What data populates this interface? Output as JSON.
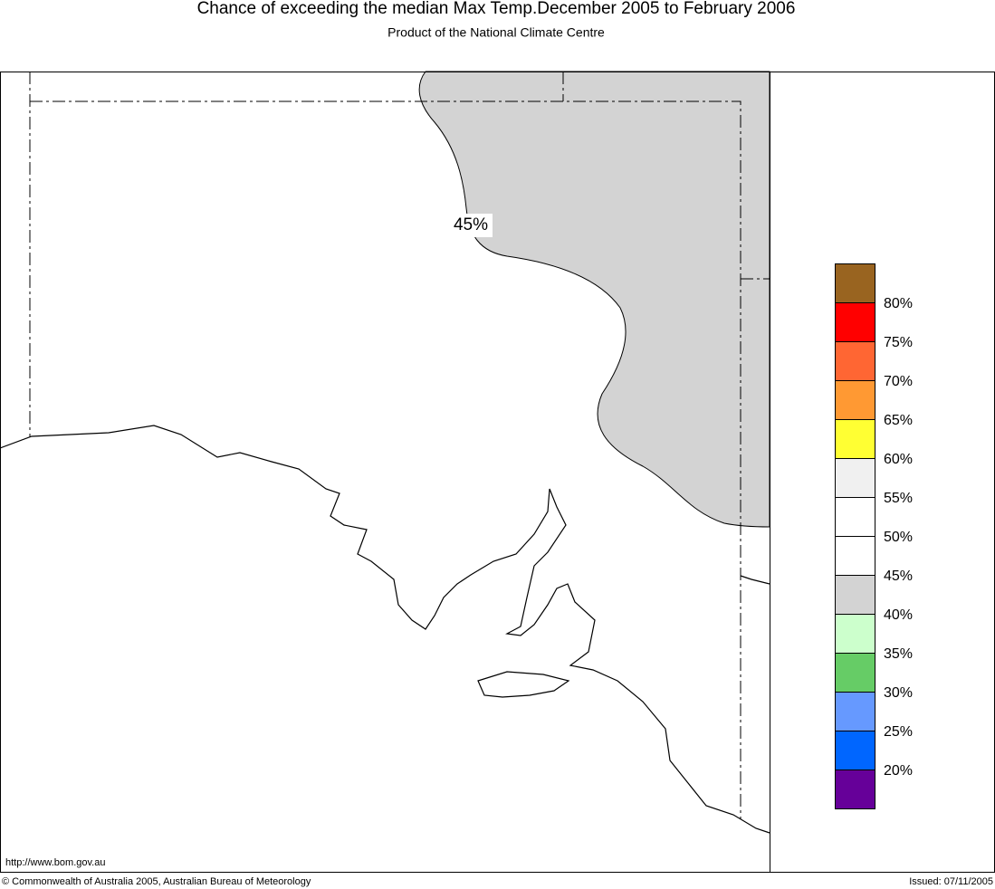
{
  "header": {
    "title": "Chance of exceeding the median Max Temp.December 2005 to February 2006",
    "subtitle": "Product of the National Climate Centre"
  },
  "map": {
    "contour_label": "45%"
  },
  "legend": {
    "colors": [
      "#996420",
      "#ff0000",
      "#ff6633",
      "#ff9933",
      "#ffff33",
      "#f0f0f0",
      "#ffffff",
      "#ffffff",
      "#d3d3d3",
      "#ccffcc",
      "#66cc66",
      "#6699ff",
      "#0066ff",
      "#660099"
    ],
    "labels": [
      "80%",
      "75%",
      "70%",
      "65%",
      "60%",
      "55%",
      "50%",
      "45%",
      "40%",
      "35%",
      "30%",
      "25%",
      "20%"
    ]
  },
  "footer": {
    "url": "http://www.bom.gov.au",
    "copyright": "© Commonwealth of Australia 2005, Australian Bureau of Meteorology",
    "issued": "Issued: 07/11/2005"
  }
}
